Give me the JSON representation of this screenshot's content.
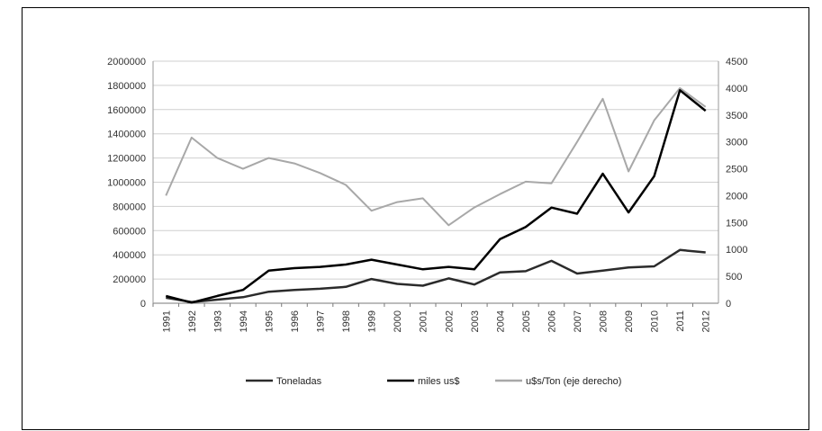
{
  "chart_data": {
    "type": "line",
    "title": "",
    "xlabel": "",
    "ylabel": "",
    "categories": [
      "1991",
      "1992",
      "1993",
      "1994",
      "1995",
      "1996",
      "1997",
      "1998",
      "1999",
      "2000",
      "2001",
      "2002",
      "2003",
      "2004",
      "2005",
      "2006",
      "2007",
      "2008",
      "2009",
      "2010",
      "2011",
      "2012"
    ],
    "y_left_lim": [
      0,
      2000000
    ],
    "y_left_ticks": [
      "0",
      "200000",
      "400000",
      "600000",
      "800000",
      "1000000",
      "1200000",
      "1400000",
      "1600000",
      "1800000",
      "2000000"
    ],
    "y_right_lim": [
      0,
      4500
    ],
    "y_right_ticks": [
      "0",
      "500",
      "1000",
      "1500",
      "2000",
      "2500",
      "3000",
      "3500",
      "4000",
      "4500"
    ],
    "grid": true,
    "legend_position": "bottom",
    "series": [
      {
        "name": "Toneladas",
        "axis": "left",
        "color": "#2b2b2b",
        "values": [
          45000,
          10000,
          30000,
          50000,
          95000,
          110000,
          120000,
          135000,
          200000,
          160000,
          145000,
          205000,
          155000,
          255000,
          265000,
          350000,
          245000,
          270000,
          295000,
          305000,
          440000,
          420000
        ]
      },
      {
        "name": "miles us$",
        "axis": "left",
        "color": "#000000",
        "values": [
          60000,
          5000,
          60000,
          110000,
          270000,
          290000,
          300000,
          320000,
          360000,
          320000,
          280000,
          300000,
          280000,
          530000,
          630000,
          790000,
          740000,
          1070000,
          750000,
          1050000,
          1760000,
          1590000
        ]
      },
      {
        "name": "u$s/Ton (eje derecho)",
        "axis": "right",
        "color": "#a8a8a8",
        "values": [
          2000,
          3080,
          2700,
          2500,
          2700,
          2600,
          2420,
          2200,
          1720,
          1880,
          1950,
          1450,
          1780,
          2030,
          2260,
          2230,
          3000,
          3800,
          2450,
          3400,
          4000,
          3650
        ]
      }
    ]
  }
}
